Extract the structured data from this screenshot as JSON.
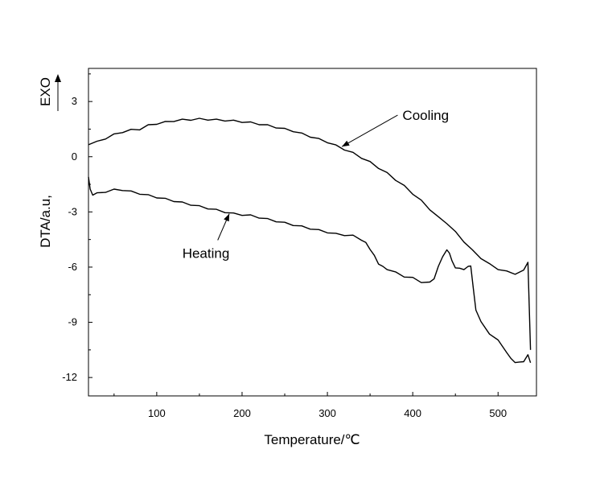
{
  "chart_data": {
    "type": "line",
    "xlabel": "Temperature/℃",
    "ylabel": "DTA/a.u,",
    "ylabel_extra": "EXO",
    "xlim": [
      20,
      545
    ],
    "ylim": [
      -13.0,
      4.8
    ],
    "xticks": [
      100,
      200,
      300,
      400,
      500
    ],
    "yticks": [
      3,
      0,
      -3,
      -6,
      -9,
      -12
    ],
    "grid": false,
    "annotations": [
      {
        "text": "Cooling",
        "point": [
          317,
          0.55
        ],
        "label_at": [
          388,
          2.0
        ]
      },
      {
        "text": "Heating",
        "point": [
          185,
          -3.1
        ],
        "label_at": [
          130,
          -5.5
        ]
      }
    ],
    "series": [
      {
        "x": [
          20,
          30,
          40,
          50,
          60,
          70,
          80,
          90,
          100,
          110,
          120,
          130,
          140,
          150,
          160,
          170,
          180,
          190,
          200,
          210,
          220,
          230,
          240,
          250,
          260,
          270,
          280,
          290,
          300,
          310,
          320,
          330,
          340,
          350,
          360,
          370,
          380,
          390,
          400,
          410,
          420,
          430,
          440,
          450,
          460,
          470,
          480,
          490,
          500,
          510,
          520,
          530,
          535,
          538
        ],
        "y": [
          0.65,
          0.8,
          1.0,
          1.2,
          1.35,
          1.45,
          1.5,
          1.7,
          1.8,
          1.88,
          1.95,
          2.0,
          2.02,
          2.05,
          2.03,
          2.0,
          1.98,
          1.95,
          1.9,
          1.85,
          1.78,
          1.7,
          1.6,
          1.5,
          1.4,
          1.25,
          1.1,
          0.95,
          0.8,
          0.6,
          0.4,
          0.2,
          -0.05,
          -0.3,
          -0.6,
          -0.9,
          -1.25,
          -1.6,
          -2.0,
          -2.4,
          -2.85,
          -3.3,
          -3.6,
          -4.1,
          -4.6,
          -5.1,
          -5.5,
          -5.85,
          -6.1,
          -6.25,
          -6.35,
          -6.2,
          -5.7,
          -10.5
        ]
      },
      {
        "x": [
          20,
          22,
          25,
          30,
          40,
          50,
          60,
          70,
          80,
          90,
          100,
          110,
          120,
          130,
          140,
          150,
          160,
          170,
          180,
          190,
          200,
          210,
          220,
          230,
          240,
          250,
          260,
          270,
          280,
          290,
          300,
          310,
          320,
          330,
          340,
          345,
          350,
          355,
          360,
          365,
          370,
          380,
          390,
          400,
          410,
          420,
          425,
          430,
          435,
          440,
          443,
          446,
          450,
          455,
          460,
          465,
          468,
          471,
          474,
          480,
          490,
          500,
          510,
          515,
          520,
          525,
          530,
          535,
          538
        ],
        "y": [
          -1.1,
          -1.8,
          -2.05,
          -2.0,
          -1.9,
          -1.8,
          -1.8,
          -1.9,
          -2.0,
          -2.1,
          -2.2,
          -2.3,
          -2.4,
          -2.5,
          -2.6,
          -2.7,
          -2.8,
          -2.9,
          -3.0,
          -3.1,
          -3.15,
          -3.2,
          -3.3,
          -3.4,
          -3.5,
          -3.6,
          -3.7,
          -3.8,
          -3.9,
          -4.0,
          -4.1,
          -4.2,
          -4.25,
          -4.3,
          -4.5,
          -4.7,
          -5.0,
          -5.4,
          -5.8,
          -6.0,
          -6.1,
          -6.3,
          -6.5,
          -6.6,
          -6.8,
          -6.85,
          -6.6,
          -6.0,
          -5.4,
          -5.1,
          -5.2,
          -5.7,
          -6.0,
          -6.1,
          -6.1,
          -6.0,
          -5.9,
          -7.2,
          -8.3,
          -9.0,
          -9.6,
          -10.0,
          -10.6,
          -11.0,
          -11.15,
          -11.2,
          -11.1,
          -10.8,
          -11.2
        ]
      }
    ]
  }
}
